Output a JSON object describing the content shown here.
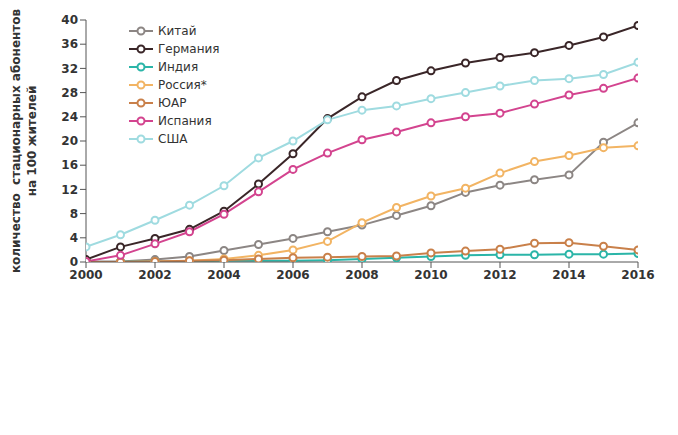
{
  "chart_data": {
    "type": "line",
    "ylabel": "количество  стационарных абонентов\nна 100 жителей",
    "x": [
      2000,
      2001,
      2002,
      2003,
      2004,
      2005,
      2006,
      2007,
      2008,
      2009,
      2010,
      2011,
      2012,
      2013,
      2014,
      2015,
      2016
    ],
    "xlim": [
      2000,
      2016
    ],
    "xticks": [
      2000,
      2002,
      2004,
      2006,
      2008,
      2010,
      2012,
      2014,
      2016
    ],
    "ylim": [
      0,
      40
    ],
    "yticks": [
      0,
      4,
      8,
      12,
      16,
      20,
      24,
      28,
      32,
      36,
      40
    ],
    "grid": false,
    "legend": "upper left",
    "marker": "circle",
    "series": [
      {
        "name": "Китай",
        "color": "#8c8684",
        "values": [
          0.1,
          0.1,
          0.4,
          0.9,
          1.9,
          2.9,
          3.9,
          5.0,
          6.1,
          7.7,
          9.3,
          11.5,
          12.7,
          13.6,
          14.4,
          19.8,
          23.0
        ]
      },
      {
        "name": "Германия",
        "color": "#3a2628",
        "values": [
          0.4,
          2.5,
          3.9,
          5.4,
          8.4,
          12.9,
          17.9,
          23.7,
          27.3,
          30.0,
          31.6,
          32.9,
          33.8,
          34.6,
          35.8,
          37.2,
          39.1
        ]
      },
      {
        "name": "Индия",
        "color": "#2bb5a8",
        "values": [
          null,
          0.05,
          0.1,
          0.1,
          0.2,
          0.2,
          0.2,
          0.3,
          0.5,
          0.7,
          0.9,
          1.1,
          1.2,
          1.2,
          1.3,
          1.3,
          1.4
        ]
      },
      {
        "name": "Россия*",
        "color": "#f2b463",
        "values": [
          0.0,
          0.0,
          0.1,
          0.2,
          0.5,
          1.1,
          2.0,
          3.4,
          6.5,
          9.0,
          10.9,
          12.2,
          14.7,
          16.6,
          17.6,
          18.9,
          19.2
        ]
      },
      {
        "name": "ЮАР",
        "color": "#c9804a",
        "values": [
          0.0,
          0.0,
          0.1,
          0.2,
          0.3,
          0.5,
          0.7,
          0.8,
          0.9,
          1.0,
          1.5,
          1.8,
          2.1,
          3.1,
          3.2,
          2.6,
          2.0
        ]
      },
      {
        "name": "Испания",
        "color": "#d3448f",
        "values": [
          0.1,
          1.1,
          3.0,
          5.0,
          7.9,
          11.6,
          15.3,
          18.0,
          20.2,
          21.5,
          23.0,
          24.0,
          24.6,
          26.1,
          27.6,
          28.7,
          30.4
        ]
      },
      {
        "name": "США",
        "color": "#9fdbe0",
        "values": [
          2.5,
          4.5,
          6.9,
          9.4,
          12.6,
          17.2,
          20.0,
          23.5,
          25.1,
          25.8,
          27.0,
          28.0,
          29.1,
          30.0,
          30.3,
          31.0,
          33.0
        ]
      }
    ]
  }
}
